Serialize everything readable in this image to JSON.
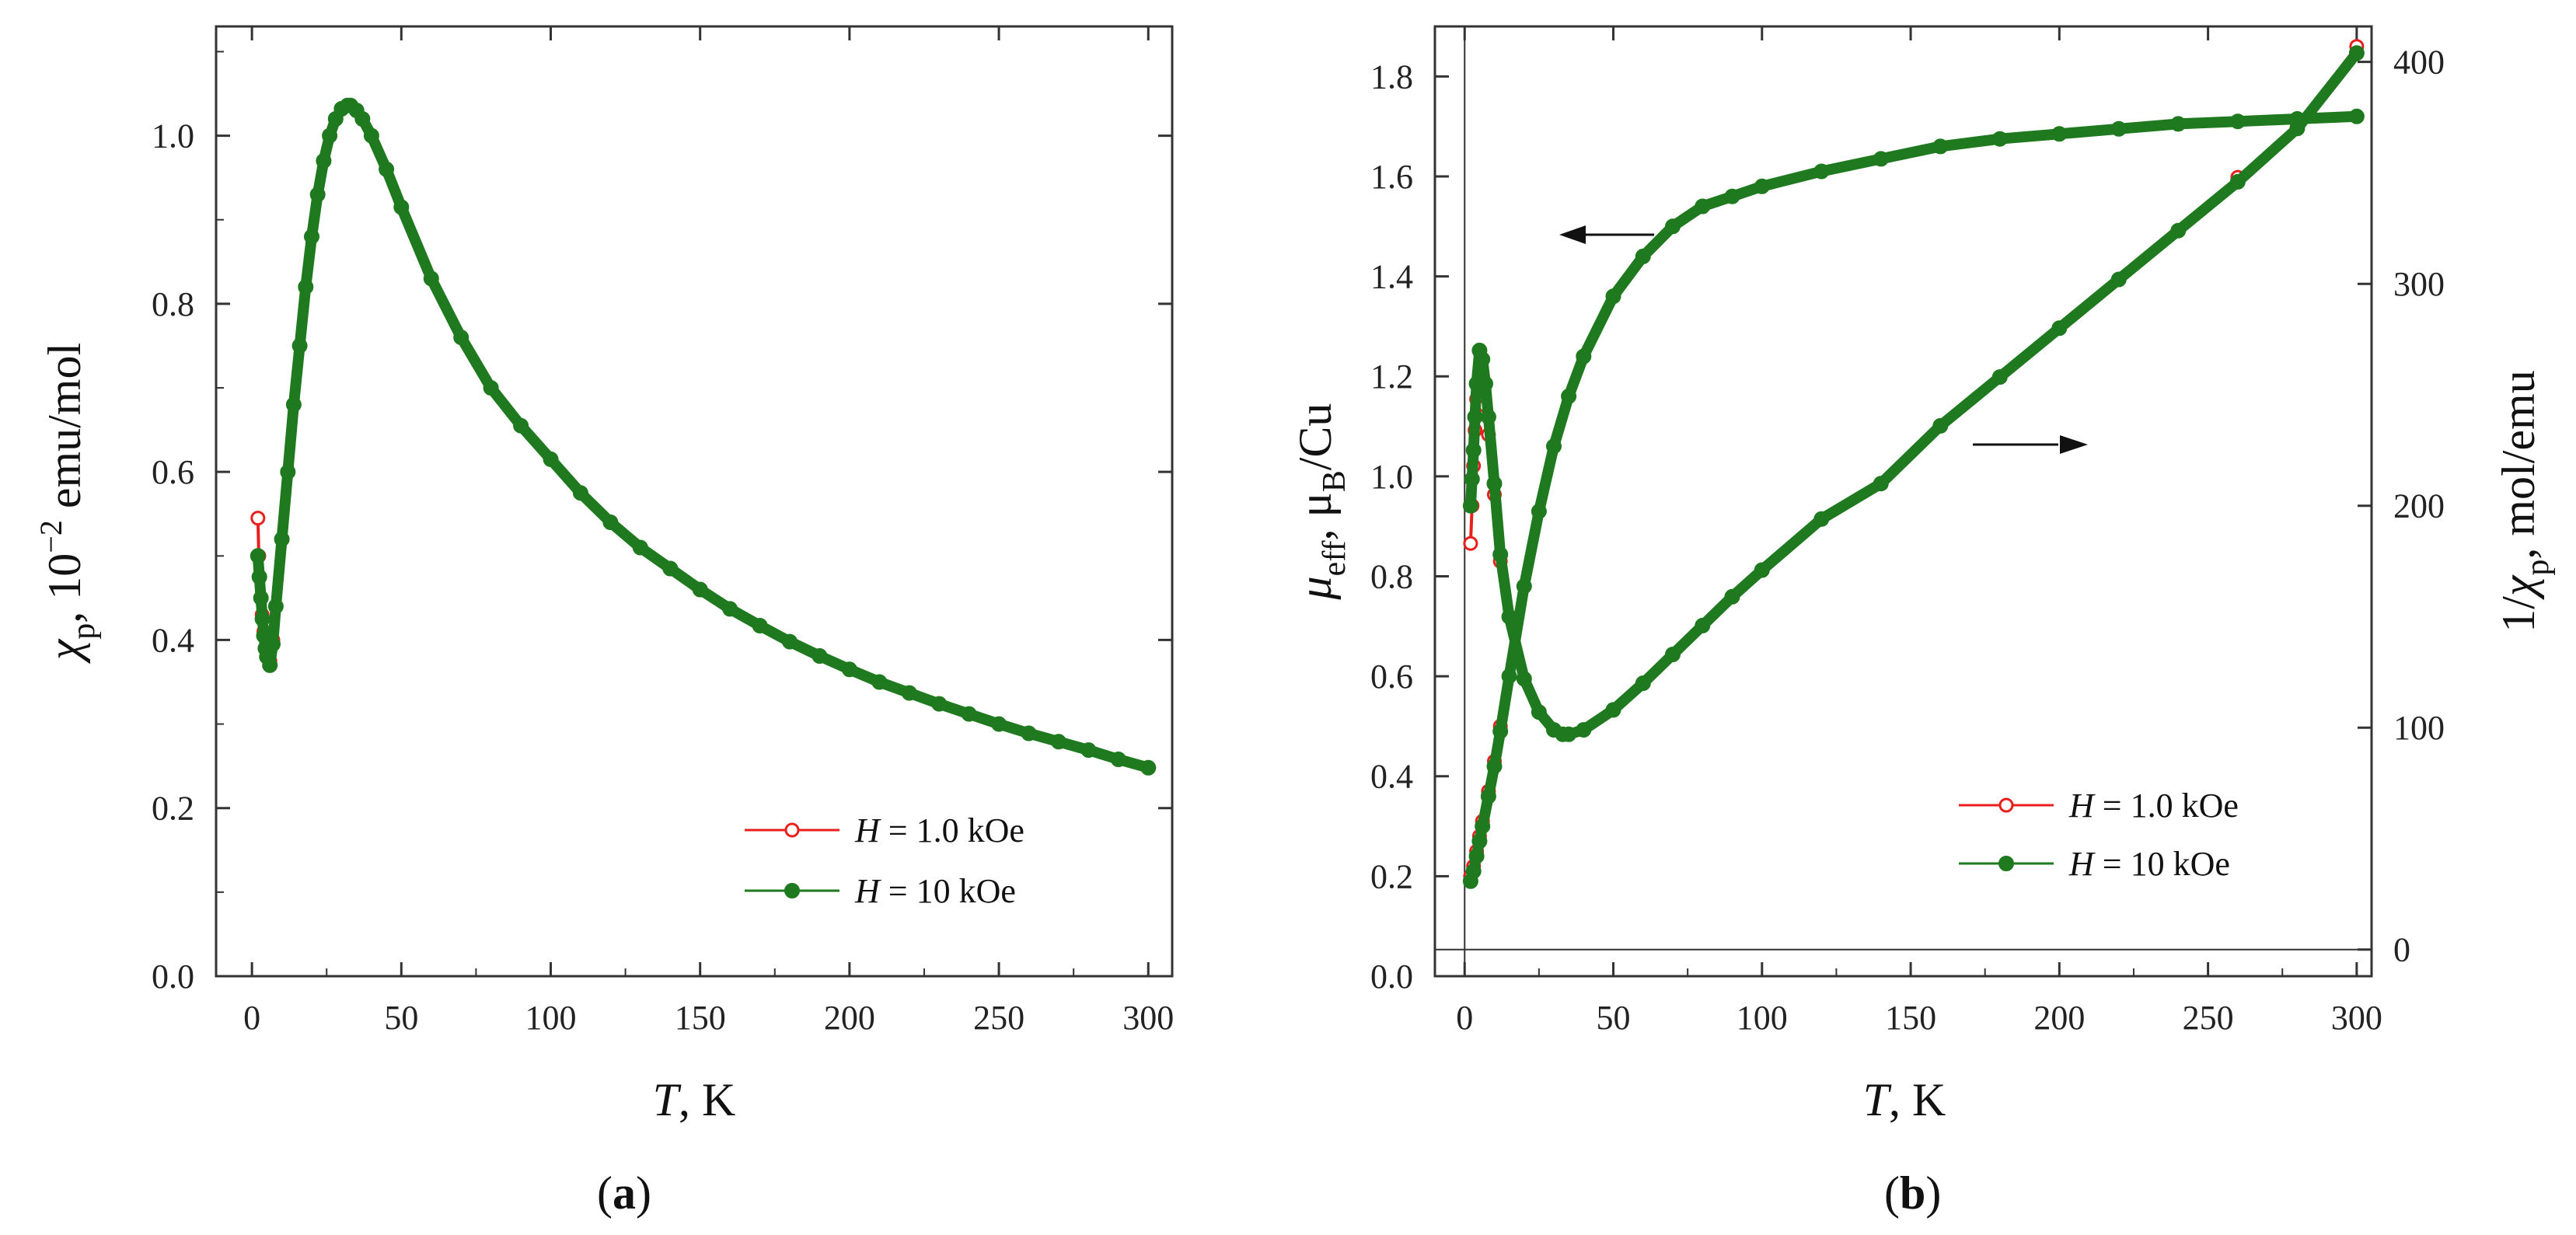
{
  "colors": {
    "series_1kOe": "#e8201d",
    "series_10kOe": "#1f7a1f",
    "axis": "#333333",
    "arrow": "#111111"
  },
  "chart_data": [
    {
      "type": "scatter",
      "panel": "(a)",
      "panel_letter": "a",
      "xlabel_var": "T",
      "xlabel_unit": ",  K",
      "ylabel_sym": "χ",
      "ylabel_sub": "p",
      "ylabel_rest": ", 10",
      "ylabel_exp": "−2",
      "ylabel_unit": " emu/mol",
      "xlim": [
        -12,
        308
      ],
      "ylim": [
        0.0,
        1.13
      ],
      "xticks": [
        0,
        50,
        100,
        150,
        200,
        250,
        300
      ],
      "yticks": [
        "0.0",
        "0.2",
        "0.4",
        "0.6",
        "0.8",
        "1.0"
      ],
      "legend": [
        {
          "var": "H",
          "text": " = 1.0 kOe",
          "marker": "open-circle"
        },
        {
          "var": "H",
          "text": " = 10  kOe",
          "marker": "filled-circle"
        }
      ],
      "series": [
        {
          "name": "H = 1.0 kOe",
          "x": [
            2,
            2.3,
            2.6,
            3,
            3.4,
            4,
            5,
            6,
            7,
            8,
            10,
            12,
            14,
            16,
            18,
            20,
            22,
            24,
            26,
            28,
            30,
            32,
            33,
            35,
            37,
            40,
            45,
            50,
            60,
            70,
            80,
            90,
            100,
            110,
            120,
            130,
            140,
            150,
            160,
            170,
            180,
            190,
            200,
            210,
            220,
            230,
            240,
            250,
            260,
            270,
            280,
            290,
            300
          ],
          "y": [
            0.545,
            0.5,
            0.475,
            0.45,
            0.43,
            0.41,
            0.385,
            0.375,
            0.4,
            0.44,
            0.52,
            0.6,
            0.68,
            0.75,
            0.82,
            0.88,
            0.93,
            0.97,
            1.0,
            1.02,
            1.032,
            1.036,
            1.036,
            1.03,
            1.02,
            1.0,
            0.96,
            0.915,
            0.83,
            0.76,
            0.7,
            0.655,
            0.615,
            0.575,
            0.54,
            0.51,
            0.485,
            0.46,
            0.437,
            0.417,
            0.398,
            0.381,
            0.365,
            0.35,
            0.337,
            0.324,
            0.312,
            0.3,
            0.289,
            0.279,
            0.269,
            0.258,
            0.248
          ]
        },
        {
          "name": "H = 10 kOe",
          "x": [
            2,
            2.5,
            3,
            3.5,
            4,
            4.5,
            5,
            6,
            7,
            8,
            10,
            12,
            14,
            16,
            18,
            20,
            22,
            24,
            26,
            28,
            30,
            32,
            33,
            35,
            37,
            40,
            45,
            50,
            60,
            70,
            80,
            90,
            100,
            110,
            120,
            130,
            140,
            150,
            160,
            170,
            180,
            190,
            200,
            210,
            220,
            230,
            240,
            250,
            260,
            270,
            280,
            290,
            300
          ],
          "y": [
            0.5,
            0.475,
            0.45,
            0.425,
            0.405,
            0.39,
            0.38,
            0.37,
            0.395,
            0.44,
            0.52,
            0.6,
            0.68,
            0.75,
            0.82,
            0.88,
            0.93,
            0.97,
            1.0,
            1.02,
            1.032,
            1.036,
            1.036,
            1.03,
            1.02,
            1.0,
            0.96,
            0.915,
            0.83,
            0.76,
            0.7,
            0.655,
            0.615,
            0.575,
            0.54,
            0.51,
            0.485,
            0.46,
            0.437,
            0.417,
            0.398,
            0.381,
            0.365,
            0.35,
            0.337,
            0.324,
            0.312,
            0.3,
            0.289,
            0.279,
            0.269,
            0.258,
            0.248
          ]
        }
      ]
    },
    {
      "type": "scatter",
      "panel": "(b)",
      "panel_letter": "b",
      "xlabel_var": "T",
      "xlabel_unit": ", K",
      "ylabel_left_sym": "μ",
      "ylabel_left_sub": "eff",
      "ylabel_left_rest": ",  μ",
      "ylabel_left_sub2": "B",
      "ylabel_left_unit": "/Cu",
      "ylabel_right_pre": "1/",
      "ylabel_right_sym": "χ",
      "ylabel_right_sub": "p",
      "ylabel_right_unit": ", mol/emu",
      "xlim": [
        -10,
        305
      ],
      "ylim_left": [
        0.0,
        1.9
      ],
      "ylim_right": [
        -12,
        416
      ],
      "xticks": [
        0,
        50,
        100,
        150,
        200,
        250,
        300
      ],
      "yticks_left": [
        "0.0",
        "0.2",
        "0.4",
        "0.6",
        "0.8",
        "1.0",
        "1.2",
        "1.4",
        "1.6",
        "1.8"
      ],
      "yticks_right": [
        0,
        100,
        200,
        300,
        400
      ],
      "legend": [
        {
          "var": "H",
          "text": " = 1.0 kOe",
          "marker": "open-circle"
        },
        {
          "var": "H",
          "text": " = 10  kOe",
          "marker": "filled-circle"
        }
      ],
      "series": [
        {
          "name": "μeff, H = 1.0 kOe",
          "axis": "left",
          "x": [
            2,
            3,
            4,
            5,
            6,
            8,
            10,
            12,
            15,
            20,
            25,
            30,
            35,
            40,
            50,
            60,
            70,
            80,
            90,
            100,
            120,
            140,
            160,
            180,
            200,
            220,
            240,
            260,
            280,
            300
          ],
          "y": [
            0.2,
            0.22,
            0.25,
            0.28,
            0.31,
            0.37,
            0.43,
            0.5,
            0.6,
            0.78,
            0.93,
            1.06,
            1.16,
            1.24,
            1.36,
            1.44,
            1.5,
            1.54,
            1.56,
            1.58,
            1.61,
            1.635,
            1.66,
            1.675,
            1.685,
            1.695,
            1.705,
            1.71,
            1.715,
            1.72
          ]
        },
        {
          "name": "μeff, H = 10 kOe",
          "axis": "left",
          "x": [
            2,
            3,
            4,
            5,
            6,
            8,
            10,
            12,
            15,
            20,
            25,
            30,
            35,
            40,
            50,
            60,
            70,
            80,
            90,
            100,
            120,
            140,
            160,
            180,
            200,
            220,
            240,
            260,
            280,
            300
          ],
          "y": [
            0.19,
            0.21,
            0.24,
            0.27,
            0.3,
            0.36,
            0.42,
            0.49,
            0.6,
            0.78,
            0.93,
            1.06,
            1.16,
            1.24,
            1.36,
            1.44,
            1.5,
            1.54,
            1.56,
            1.58,
            1.61,
            1.635,
            1.66,
            1.675,
            1.685,
            1.695,
            1.705,
            1.71,
            1.715,
            1.72
          ]
        },
        {
          "name": "1/χp, H = 1.0 kOe",
          "axis": "right",
          "x": [
            2,
            2.5,
            3,
            3.5,
            4,
            5,
            6,
            7,
            8,
            10,
            12,
            15,
            20,
            25,
            30,
            33,
            35,
            40,
            50,
            60,
            70,
            80,
            90,
            100,
            120,
            140,
            160,
            180,
            200,
            220,
            240,
            260,
            280,
            300
          ],
          "y": [
            183,
            200,
            218,
            234,
            248,
            260,
            254,
            245,
            232,
            205,
            175,
            150,
            122,
            107,
            99,
            97,
            97,
            99,
            108,
            120,
            133,
            146,
            159,
            171,
            194,
            210,
            236,
            258,
            280,
            302,
            324,
            348,
            372,
            407
          ]
        },
        {
          "name": "1/χp, H = 10 kOe",
          "axis": "right",
          "x": [
            2,
            2.5,
            3,
            3.5,
            4,
            5,
            6,
            7,
            8,
            10,
            12,
            15,
            20,
            25,
            30,
            33,
            35,
            40,
            50,
            60,
            70,
            80,
            90,
            100,
            120,
            140,
            160,
            180,
            200,
            220,
            240,
            260,
            280,
            300
          ],
          "y": [
            200,
            212,
            225,
            240,
            255,
            270,
            266,
            255,
            240,
            210,
            178,
            150,
            122,
            107,
            99,
            97,
            97,
            99,
            108,
            120,
            133,
            146,
            159,
            171,
            194,
            210,
            236,
            258,
            280,
            302,
            324,
            346,
            370,
            404
          ]
        }
      ]
    }
  ]
}
